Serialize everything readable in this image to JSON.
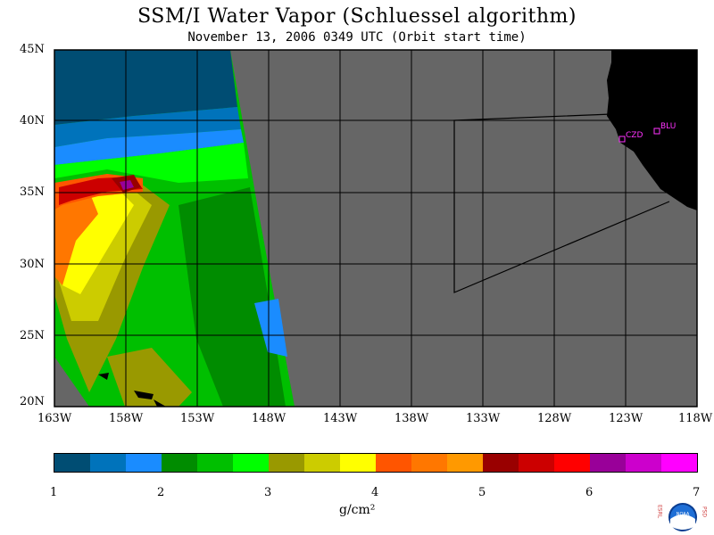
{
  "title": "SSM/I Water Vapor (Schluessel algorithm)",
  "subtitle": "November 13, 2006  0349 UTC  (Orbit start time)",
  "map": {
    "lat_labels": [
      "45N",
      "40N",
      "35N",
      "30N",
      "25N",
      "20N"
    ],
    "lon_labels": [
      "163W",
      "158W",
      "153W",
      "148W",
      "143W",
      "138W",
      "133W",
      "128W",
      "123W",
      "118W"
    ],
    "stations": [
      "CZD",
      "BLU"
    ],
    "colors": {
      "no_data": "#666666",
      "land": "#000000",
      "grid": "#000000",
      "station": "#ff33ff"
    }
  },
  "colorbar": {
    "colors": [
      "#004d73",
      "#0073bb",
      "#1a8cff",
      "#008c00",
      "#00bf00",
      "#00ff00",
      "#999900",
      "#cccc00",
      "#ffff00",
      "#ff5500",
      "#ff7700",
      "#ff9900",
      "#990000",
      "#cc0000",
      "#ff0000",
      "#990099",
      "#cc00cc",
      "#ff00ff"
    ],
    "ticks": [
      "1",
      "2",
      "3",
      "4",
      "5",
      "6",
      "7"
    ],
    "units": "g/cm²"
  },
  "logo_letters": {
    "left": "ESRL",
    "right": "PSD",
    "center": "NOAA"
  }
}
